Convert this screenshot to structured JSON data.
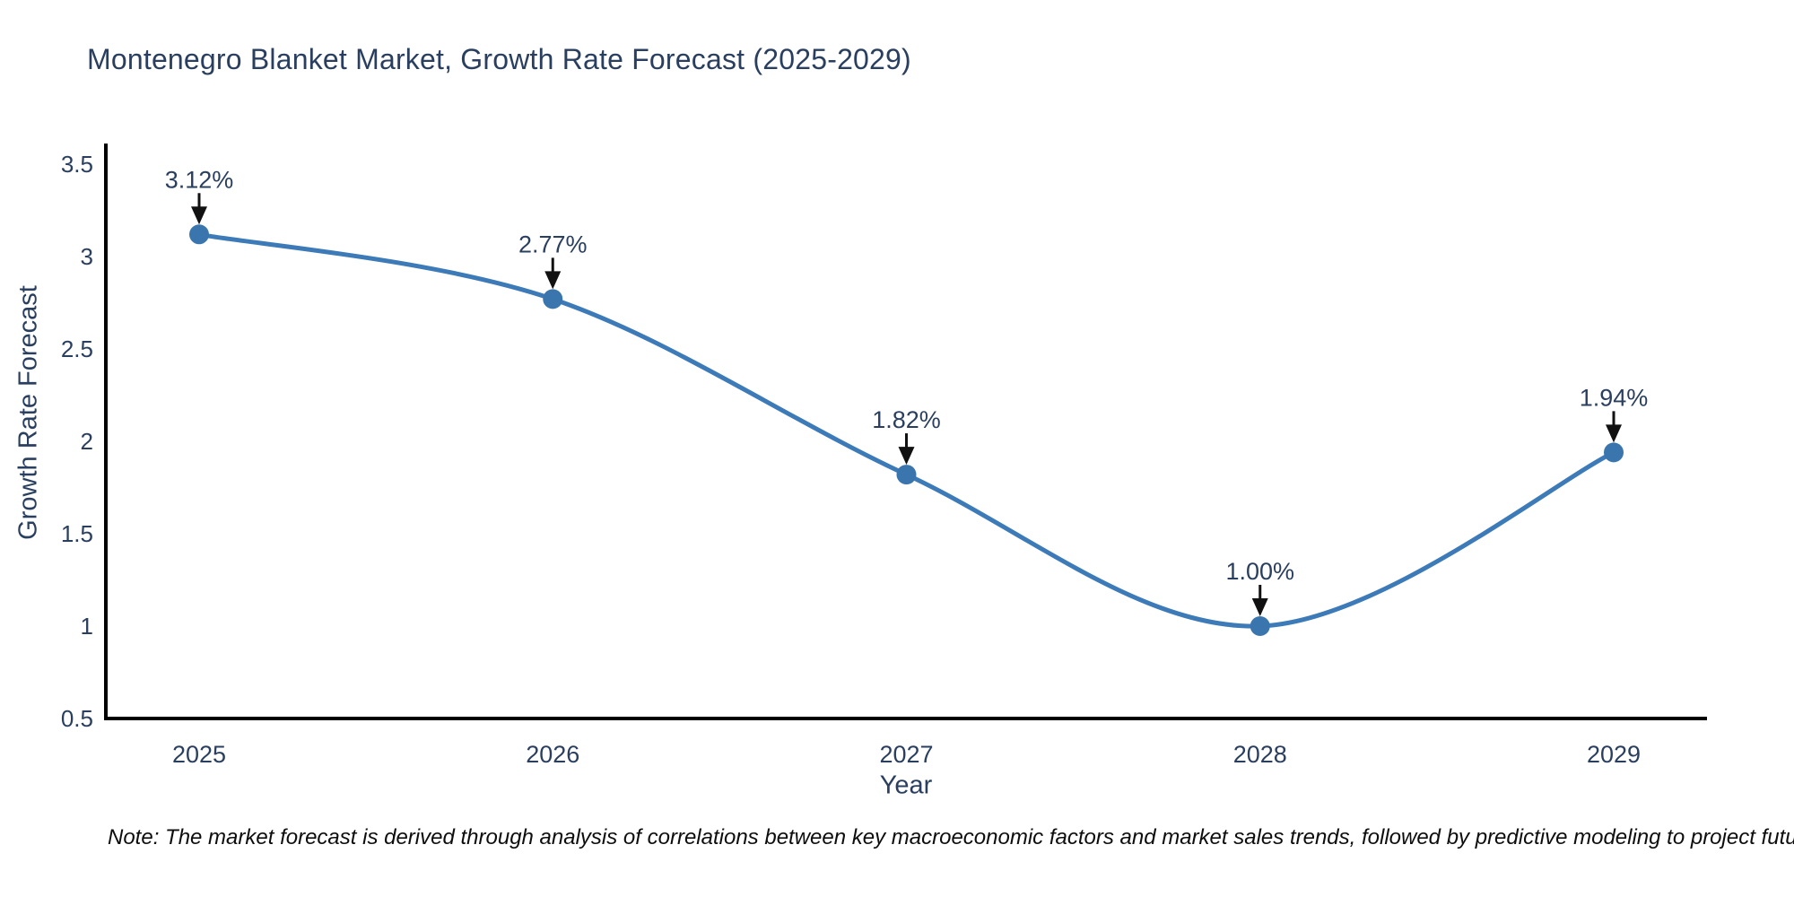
{
  "title": "Montenegro Blanket Market, Growth Rate Forecast (2025-2029)",
  "note": "Note: The market forecast is derived through analysis of correlations between key macroeconomic factors and market sales trends, followed by predictive modeling to project future sales",
  "chart_data": {
    "type": "line",
    "title": "Montenegro Blanket Market, Growth Rate Forecast (2025-2029)",
    "xlabel": "Year",
    "ylabel": "Growth Rate Forecast",
    "categories": [
      "2025",
      "2026",
      "2027",
      "2028",
      "2029"
    ],
    "values": [
      3.12,
      2.77,
      1.82,
      1.0,
      1.94
    ],
    "point_labels": [
      "3.12%",
      "2.77%",
      "1.82%",
      "1.00%",
      "1.94%"
    ],
    "ylim": [
      0.5,
      3.5
    ],
    "yticks": [
      3.5,
      3,
      2.5,
      2,
      1.5,
      1,
      0.5
    ],
    "grid": false,
    "legend": false,
    "line_style": "spline",
    "annotation_style": "value-above-with-down-arrow",
    "colors": {
      "line": "#3d7ab8",
      "marker": "#3a76ad",
      "arrow": "#111111",
      "text": "#2a3f5f",
      "axis": "#000000",
      "note_text": "#0d0d0d",
      "background": "#ffffff"
    }
  }
}
